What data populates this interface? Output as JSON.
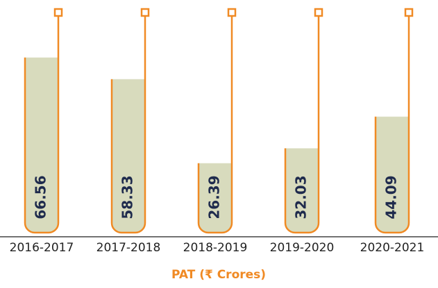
{
  "chart_data": {
    "type": "bar",
    "title": "PAT (₹ Crores)",
    "categories": [
      "2016-2017",
      "2017-2018",
      "2018-2019",
      "2019-2020",
      "2020-2021"
    ],
    "values": [
      66.56,
      58.33,
      26.39,
      32.03,
      44.09
    ],
    "color": "#d8dbbd",
    "outline_color": "#f08a24",
    "label_color": "#1f2b4d",
    "ylim": [
      0,
      80
    ]
  }
}
